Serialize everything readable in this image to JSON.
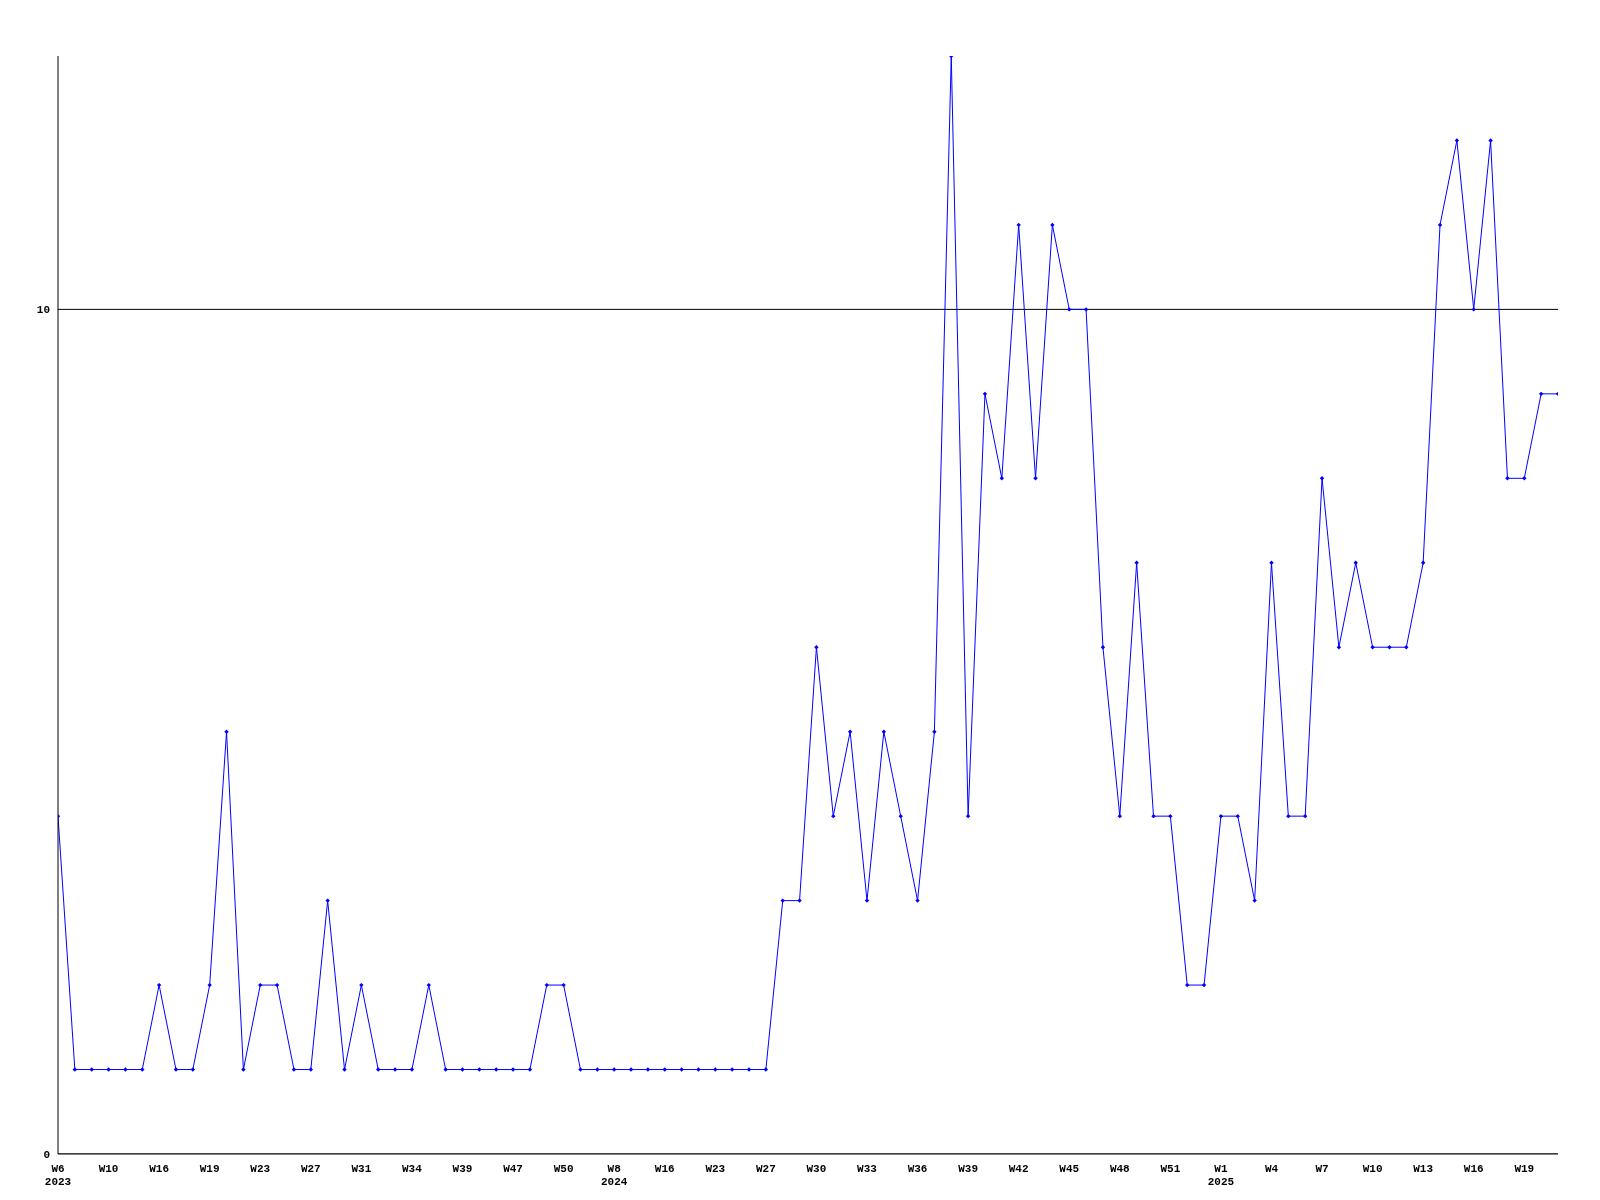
{
  "chart_data": {
    "type": "line",
    "categories": [
      "W6\n2023",
      null,
      null,
      "W10",
      null,
      null,
      "W16",
      null,
      null,
      "W19",
      null,
      null,
      "W23",
      null,
      null,
      "W27",
      null,
      null,
      "W31",
      null,
      null,
      "W34",
      null,
      null,
      "W39",
      null,
      null,
      "W47",
      null,
      null,
      "W50",
      null,
      null,
      "W8\n2024",
      null,
      null,
      "W16",
      null,
      null,
      "W23",
      null,
      null,
      "W27",
      null,
      null,
      "W30",
      null,
      null,
      "W33",
      null,
      null,
      "W36",
      null,
      null,
      "W39",
      null,
      null,
      "W42",
      null,
      null,
      "W45",
      null,
      null,
      "W48",
      null,
      null,
      "W51",
      null,
      null,
      "W1\n2025",
      null,
      null,
      "W4",
      null,
      null,
      "W7",
      null,
      null,
      "W10",
      null,
      null,
      "W13",
      null,
      null,
      "W16",
      null,
      null,
      "W19",
      null,
      null
    ],
    "series": [
      {
        "color": "#0000ff",
        "values": [
          4,
          1,
          1,
          1,
          1,
          1,
          2,
          1,
          1,
          2,
          5,
          1,
          2,
          2,
          1,
          1,
          3,
          1,
          2,
          1,
          1,
          1,
          2,
          1,
          1,
          1,
          1,
          1,
          1,
          2,
          2,
          1,
          1,
          1,
          1,
          1,
          1,
          1,
          1,
          1,
          1,
          1,
          1,
          3,
          3,
          6,
          4,
          5,
          3,
          5,
          4,
          3,
          5,
          13,
          4,
          9,
          8,
          11,
          8,
          11,
          10,
          10,
          6,
          4,
          7,
          4,
          4,
          2,
          2,
          4,
          4,
          3,
          7,
          4,
          4,
          8,
          6,
          7,
          6,
          6,
          6,
          7,
          11,
          12,
          10,
          12,
          8,
          8,
          9,
          9
        ]
      }
    ],
    "ylim": [
      0,
      13
    ],
    "yticks": [
      0,
      10
    ],
    "grid": "y",
    "marker": "diamond",
    "line_style": "solid"
  }
}
